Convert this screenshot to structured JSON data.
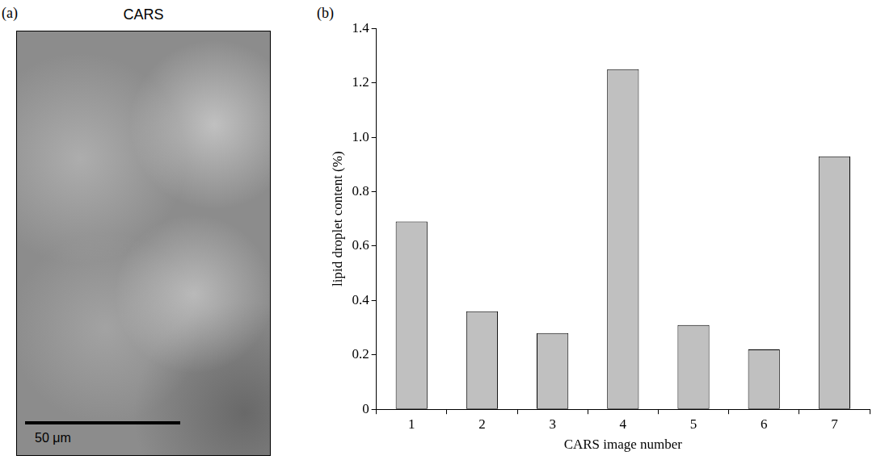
{
  "image_panel": {
    "panel_label": "(a)",
    "title": "CARS",
    "scale_bar": "50 μm"
  },
  "chart_data": {
    "panel_label": "(b)",
    "type": "bar",
    "x_label": "CARS image number",
    "y_label": "lipid droplet content (%)",
    "categories": [
      "1",
      "2",
      "3",
      "4",
      "5",
      "6",
      "7"
    ],
    "values": [
      0.69,
      0.36,
      0.28,
      1.25,
      0.31,
      0.22,
      0.93
    ],
    "color": "#c0c0c0",
    "ylim": [
      0,
      1.4
    ],
    "yticks": [
      0,
      0.2,
      0.4,
      0.6,
      0.8,
      {
        "value": 1,
        "label": "1.0"
      },
      1.2,
      1.4
    ],
    "grid": false,
    "data_labels": false
  }
}
